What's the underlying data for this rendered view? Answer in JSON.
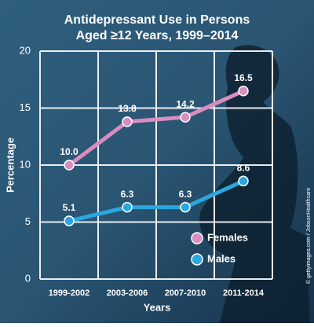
{
  "chart_data": {
    "type": "line",
    "title": "Antidepressant Use in Persons Aged ≥12 Years, 1999–2014",
    "x_label": "Years",
    "y_label": "Percentage",
    "categories": [
      "1999-2002",
      "2003-2006",
      "2007-2010",
      "2011-2014"
    ],
    "series": [
      {
        "name": "Females",
        "color": "#d98dc0",
        "values": [
          10.0,
          13.8,
          14.2,
          16.5
        ],
        "value_labels": [
          "10.0",
          "13.8",
          "14.2",
          "16.5"
        ]
      },
      {
        "name": "Males",
        "color": "#2aa7df",
        "values": [
          5.1,
          6.3,
          6.3,
          8.6
        ],
        "value_labels": [
          "5.1",
          "6.3",
          "6.3",
          "8.6"
        ]
      }
    ],
    "ylim": [
      0,
      20
    ],
    "yticks": [
      0,
      5,
      10,
      15,
      20
    ],
    "grid": true,
    "legend": "lower right",
    "credit": "© gettyimages.com / JobsonHealthcare"
  }
}
